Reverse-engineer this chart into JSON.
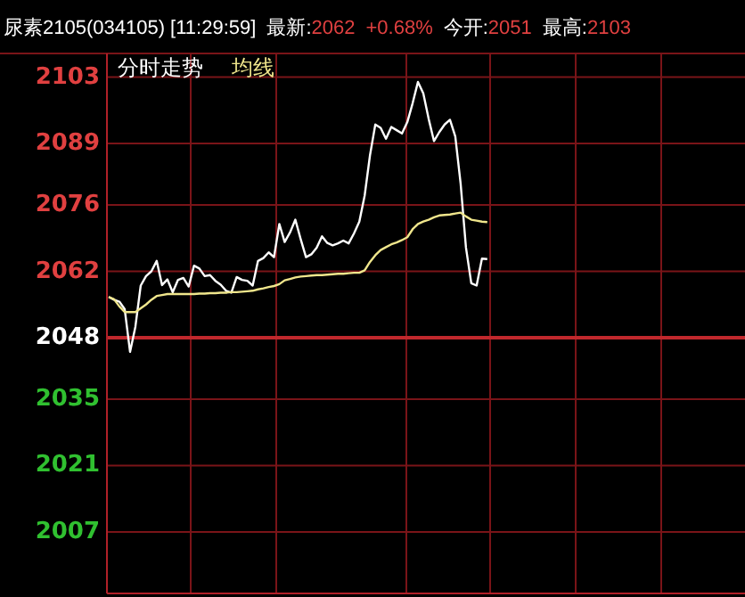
{
  "chart_data": {
    "type": "line",
    "title": "尿素2105(034105) [11:29:59]",
    "annotations": [
      "最新:2062",
      "+0.68%",
      "今开:2051",
      "最高:2103"
    ],
    "grid": true,
    "tick_labels": "y",
    "categories": [
      null,
      null,
      null,
      null,
      null,
      null,
      null,
      null,
      null,
      null,
      null,
      null,
      null,
      null,
      null,
      null,
      null,
      null,
      null,
      null,
      null,
      null,
      null,
      null,
      null,
      null,
      null,
      null,
      null,
      null,
      null,
      null,
      null,
      null,
      null,
      null,
      null,
      null,
      null,
      null,
      null,
      null,
      null,
      null,
      null,
      null,
      null,
      null,
      null,
      null,
      null,
      null,
      null,
      null,
      null,
      null,
      null,
      null,
      null,
      null,
      null,
      null,
      null,
      null,
      null,
      null,
      null,
      null,
      null,
      null,
      null,
      null,
      null,
      null,
      null,
      null,
      null,
      null,
      null,
      null,
      null,
      null,
      null,
      null,
      null,
      null,
      null,
      null,
      null,
      null,
      null,
      null,
      null,
      null,
      null,
      null,
      null,
      null,
      null,
      null,
      null,
      null,
      null,
      null,
      null,
      null,
      null,
      null,
      null,
      null,
      null,
      null,
      null,
      null,
      null,
      null,
      null,
      null,
      null,
      null
    ],
    "ylim": [
      1994,
      2108
    ],
    "yticks": [
      2007,
      2021,
      2035,
      2048,
      2062,
      2076,
      2089,
      2103
    ],
    "ref_lines": [
      {
        "axis": "y",
        "value": 2048,
        "label": null,
        "color": "#c0282c"
      }
    ],
    "series": [
      {
        "name": "分时走势",
        "color": "#ffffff",
        "values": [
          2056.6,
          2056,
          2055.6,
          2054,
          2045,
          2050.3,
          2059,
          2061,
          2062,
          2064.2,
          2059.1,
          2060.3,
          2057.6,
          2060.2,
          2060.6,
          2058.8,
          2063.2,
          2062.6,
          2061,
          2061.2,
          2060,
          2059.2,
          2057.9,
          2057.5,
          2060.8,
          2060.2,
          2060,
          2059,
          2064.2,
          2064.8,
          2066,
          2065,
          2072,
          2068.2,
          2070.2,
          2072.9,
          2068.8,
          2065,
          2065.6,
          2067,
          2069.4,
          2068,
          2067.5,
          2067.9,
          2068.5,
          2067.9,
          2070,
          2072.5,
          2078,
          2086.5,
          2093,
          2092.3,
          2090,
          2092.5,
          2091.8,
          2091.1,
          2093.5,
          2097.5,
          2102,
          2099.6,
          2094.2,
          2089.5,
          2091.4,
          2093,
          2094,
          2090.5,
          2080.5,
          2067,
          2059.5,
          2059,
          2064.7,
          2064.6,
          null,
          null,
          null,
          null,
          null,
          null,
          null,
          null,
          null,
          null,
          null,
          null,
          null,
          null,
          null,
          null,
          null,
          null,
          null,
          null,
          null,
          null,
          null,
          null,
          null,
          null,
          null,
          null,
          null,
          null,
          null,
          null,
          null,
          null,
          null,
          null,
          null,
          null,
          null,
          null,
          null,
          null,
          null,
          null,
          null,
          null,
          null,
          null
        ]
      },
      {
        "name": "均线",
        "color": "#f0e68c",
        "values": [
          2056.6,
          2056.1,
          2054.6,
          2053.4,
          2053.4,
          2053.4,
          2054.2,
          2055,
          2056,
          2056.8,
          2057,
          2057.2,
          2057.2,
          2057.2,
          2057.2,
          2057.2,
          2057.2,
          2057.3,
          2057.3,
          2057.4,
          2057.4,
          2057.5,
          2057.5,
          2057.6,
          2057.6,
          2057.7,
          2057.8,
          2057.9,
          2058.2,
          2058.4,
          2058.7,
          2058.9,
          2059.3,
          2060.1,
          2060.4,
          2060.7,
          2060.9,
          2061,
          2061.1,
          2061.2,
          2061.2,
          2061.3,
          2061.4,
          2061.5,
          2061.5,
          2061.6,
          2061.7,
          2061.7,
          2062.2,
          2064,
          2065.4,
          2066.5,
          2067.1,
          2067.7,
          2068.1,
          2068.6,
          2069.2,
          2070.9,
          2072,
          2072.5,
          2072.9,
          2073.4,
          2073.8,
          2073.9,
          2074,
          2074.2,
          2074.4,
          2073.6,
          2072.9,
          2072.7,
          2072.5,
          2072.4,
          null,
          null,
          null,
          null,
          null,
          null,
          null,
          null,
          null,
          null,
          null,
          null,
          null,
          null,
          null,
          null,
          null,
          null,
          null,
          null,
          null,
          null,
          null,
          null,
          null,
          null,
          null,
          null,
          null,
          null,
          null,
          null,
          null,
          null,
          null,
          null,
          null,
          null,
          null,
          null,
          null,
          null,
          null,
          null,
          null,
          null,
          null,
          null
        ]
      }
    ]
  }
}
